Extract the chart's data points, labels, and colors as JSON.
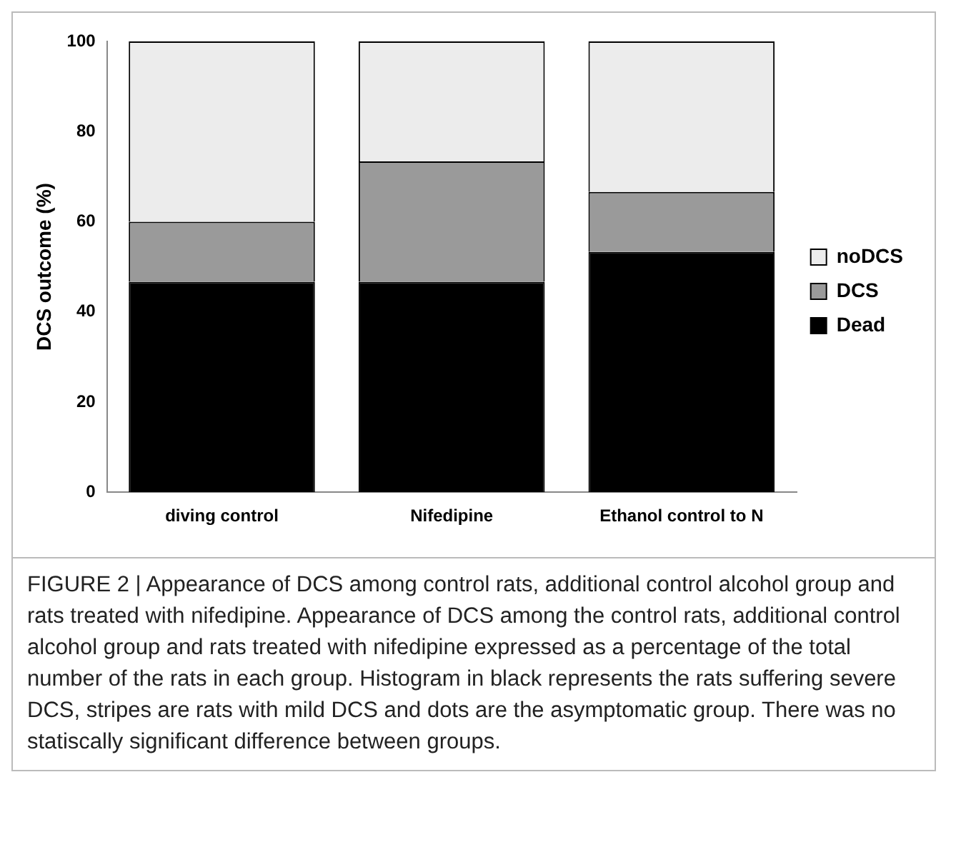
{
  "chart_data": {
    "type": "bar",
    "stacked": true,
    "ylabel": "DCS outcome (%)",
    "categories": [
      "diving control",
      "Nifedipine",
      "Ethanol control to N"
    ],
    "series": [
      {
        "name": "Dead",
        "color": "#000000",
        "values": [
          46.7,
          46.7,
          53.3
        ]
      },
      {
        "name": "DCS",
        "color": "#9a9a9a",
        "values": [
          13.3,
          26.7,
          13.3
        ]
      },
      {
        "name": "noDCS",
        "color": "#ececec",
        "values": [
          40,
          26.6,
          33.4
        ]
      }
    ],
    "ylim": [
      0,
      100
    ],
    "yticks": [
      0,
      20,
      40,
      60,
      80,
      100
    ],
    "grid": false,
    "legend": "right",
    "annotations": [
      "FIGURE 2 | Appearance of DCS among control rats, additional control alcohol group and rats treated with nifedipine. Appearance of DCS among the control rats, additional control alcohol group and rats treated with nifedipine expressed as a percentage of the total number of the rats in each group. Histogram in black represents the rats suffering severe DCS, stripes are rats with mild DCS and dots are the asymptomatic group. There was no statiscally significant difference between groups."
    ]
  }
}
